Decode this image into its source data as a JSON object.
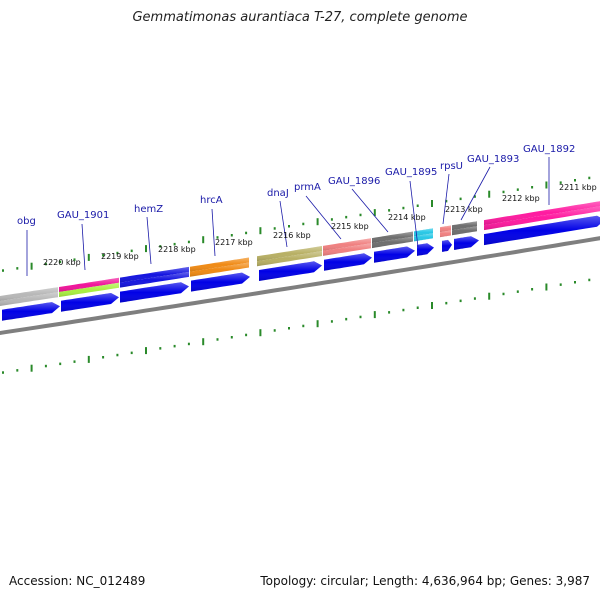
{
  "title": "Gemmatimonas aurantiaca T-27, complete genome",
  "footer": {
    "accession": "Accession: NC_012489",
    "info": "Topology: circular; Length: 4,636,964 bp; Genes: 3,987"
  },
  "gene_labels": [
    "obg",
    "GAU_1901",
    "hemZ",
    "hrcA",
    "dnaJ",
    "prmA",
    "GAU_1896",
    "GAU_1895",
    "rpsU",
    "GAU_1893",
    "GAU_1892"
  ],
  "kbp_labels": [
    "2220 kbp",
    "2219 kbp",
    "2218 kbp",
    "2217 kbp",
    "2216 kbp",
    "2215 kbp",
    "2214 kbp",
    "2213 kbp",
    "2212 kbp",
    "2211 kbp"
  ],
  "colors": {
    "forward_gene": "#0000e6",
    "backbone": "#7f7f7f",
    "tick": "#2a8a2a",
    "label": "#1a1aa8",
    "category_gray": "#b8b8b8",
    "category_magenta": "#f0149a",
    "category_lime": "#a8f040",
    "category_blue": "#1414e0",
    "category_orange": "#f08a14",
    "category_olive": "#b8b064",
    "category_salmon": "#f08080",
    "category_darkgray": "#6e6e6e",
    "category_cyan": "#28c8e6",
    "category_pink": "#ff1aa0"
  }
}
